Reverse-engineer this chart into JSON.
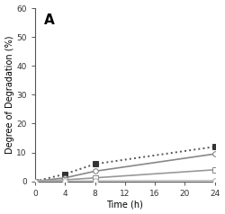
{
  "title": "A",
  "xlabel": "Time (h)",
  "ylabel": "Degree of Degradation (%)",
  "ylim": [
    0,
    60
  ],
  "xlim": [
    0,
    24
  ],
  "yticks": [
    0,
    10,
    20,
    30,
    40,
    50,
    60
  ],
  "xticks": [
    0,
    4,
    8,
    12,
    16,
    20,
    24
  ],
  "series": [
    {
      "x": [
        0,
        4,
        8,
        24
      ],
      "y": [
        0,
        2.5,
        6.0,
        12.0
      ],
      "color": "#555555",
      "linestyle": "dotted",
      "marker": "s",
      "mfc": "#333333",
      "mec": "#333333",
      "markersize": 4,
      "linewidth": 1.4,
      "dashes": [
        2,
        2
      ]
    },
    {
      "x": [
        0,
        4,
        8,
        24
      ],
      "y": [
        0,
        1.2,
        3.5,
        9.5
      ],
      "color": "#888888",
      "linestyle": "solid",
      "marker": "o",
      "mfc": "white",
      "mec": "#777777",
      "markersize": 4,
      "linewidth": 1.2,
      "dashes": []
    },
    {
      "x": [
        0,
        4,
        8,
        24
      ],
      "y": [
        0,
        0.5,
        1.2,
        4.0
      ],
      "color": "#999999",
      "linestyle": "solid",
      "marker": "s",
      "mfc": "white",
      "mec": "#888888",
      "markersize": 4,
      "linewidth": 1.2,
      "dashes": []
    },
    {
      "x": [
        0,
        4,
        8,
        24
      ],
      "y": [
        0,
        0.1,
        0.2,
        0.3
      ],
      "color": "#bbbbbb",
      "linestyle": "solid",
      "marker": "o",
      "mfc": "white",
      "mec": "#aaaaaa",
      "markersize": 4,
      "linewidth": 1.0,
      "dashes": []
    }
  ],
  "background_color": "#ffffff",
  "spine_color": "#555555",
  "tick_label_size": 6.5,
  "axis_label_size": 7
}
